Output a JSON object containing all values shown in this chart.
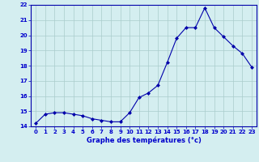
{
  "x": [
    0,
    1,
    2,
    3,
    4,
    5,
    6,
    7,
    8,
    9,
    10,
    11,
    12,
    13,
    14,
    15,
    16,
    17,
    18,
    19,
    20,
    21,
    22,
    23
  ],
  "y": [
    14.2,
    14.8,
    14.9,
    14.9,
    14.8,
    14.7,
    14.5,
    14.4,
    14.3,
    14.3,
    14.9,
    15.9,
    16.2,
    16.7,
    18.2,
    19.8,
    20.5,
    20.5,
    21.8,
    20.5,
    19.9,
    19.3,
    18.8,
    17.9
  ],
  "line_color": "#0000aa",
  "marker": "D",
  "marker_size": 2.0,
  "bg_color": "#d4eef0",
  "grid_color": "#aacccc",
  "xlabel": "Graphe des températures (°c)",
  "tick_label_color": "#0000cc",
  "xlim": [
    -0.5,
    23.5
  ],
  "ylim": [
    14,
    22
  ],
  "yticks": [
    14,
    15,
    16,
    17,
    18,
    19,
    20,
    21,
    22
  ],
  "xticks": [
    0,
    1,
    2,
    3,
    4,
    5,
    6,
    7,
    8,
    9,
    10,
    11,
    12,
    13,
    14,
    15,
    16,
    17,
    18,
    19,
    20,
    21,
    22,
    23
  ],
  "figsize": [
    3.2,
    2.0
  ],
  "dpi": 100
}
